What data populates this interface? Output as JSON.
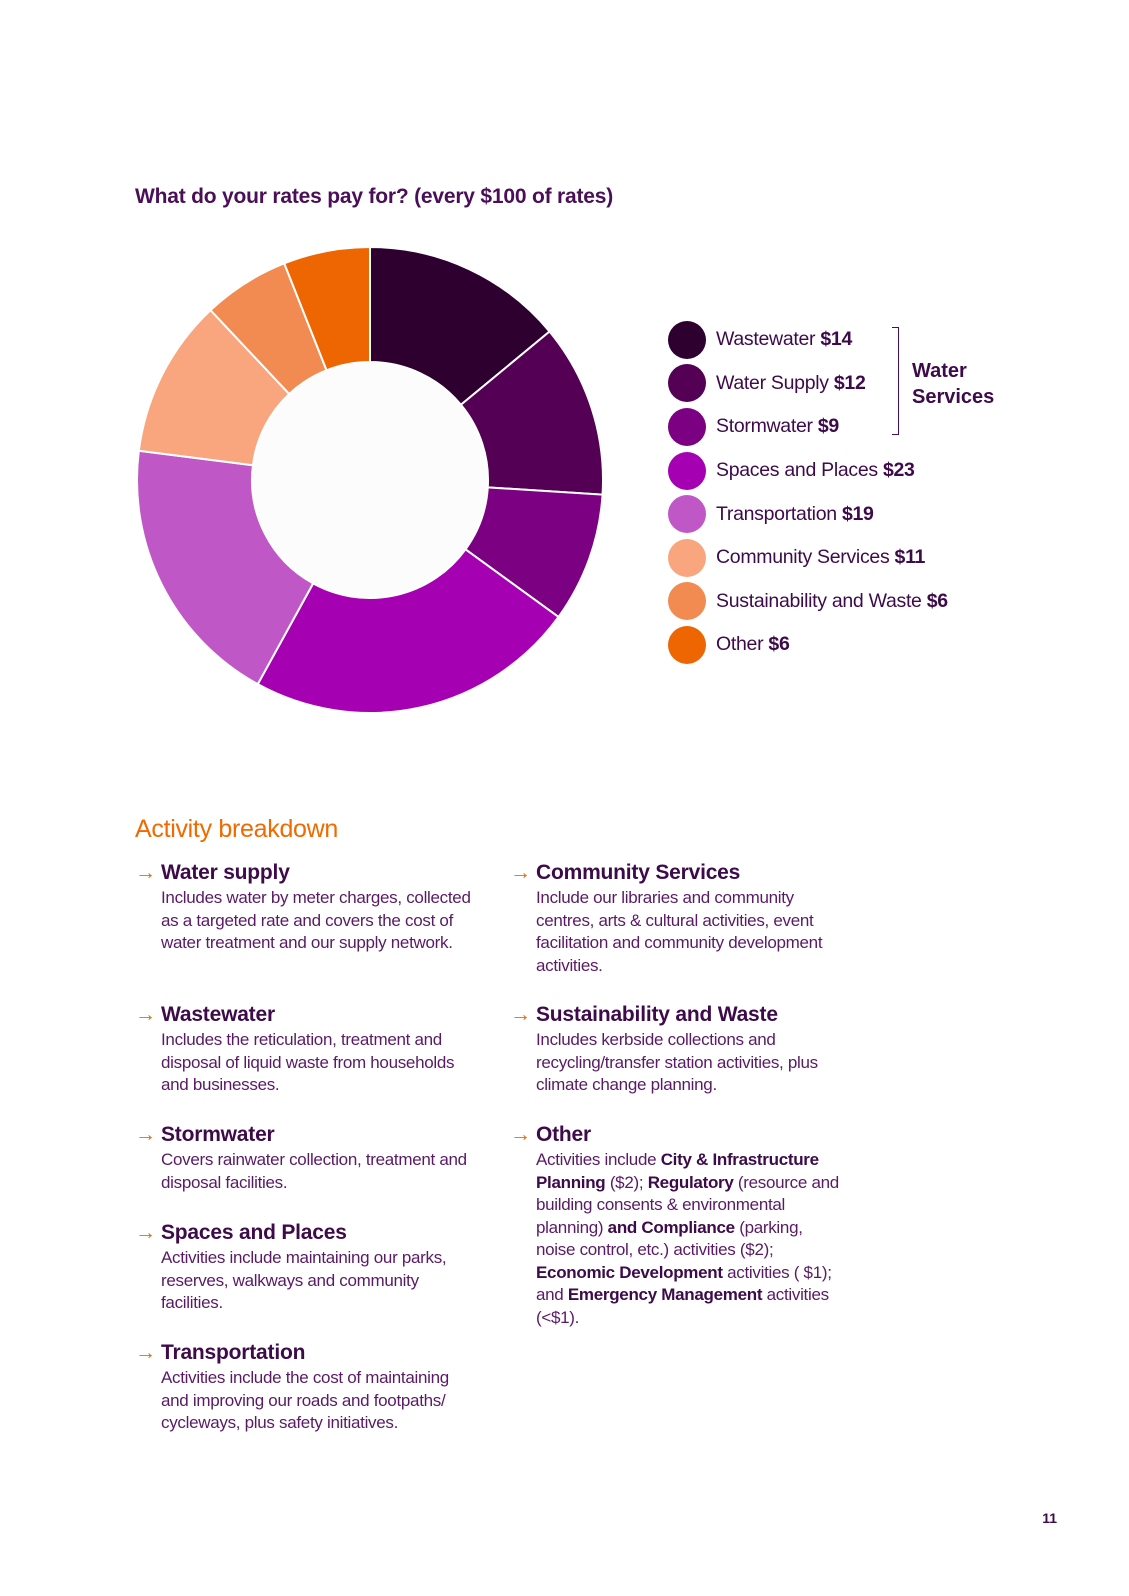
{
  "chart_data": {
    "type": "pie",
    "title": "What do your rates pay for? (every $100 of rates)",
    "series": [
      {
        "name": "Wastewater",
        "value": 14,
        "value_label": "$14",
        "color": "#2e0030"
      },
      {
        "name": "Water Supply",
        "value": 12,
        "value_label": "$12",
        "color": "#540055"
      },
      {
        "name": "Stormwater",
        "value": 9,
        "value_label": "$9",
        "color": "#7c0082"
      },
      {
        "name": "Spaces and Places",
        "value": 23,
        "value_label": "$23",
        "color": "#a600b3"
      },
      {
        "name": "Transportation",
        "value": 19,
        "value_label": "$19",
        "color": "#c057c6"
      },
      {
        "name": "Community Services",
        "value": 11,
        "value_label": "$11",
        "color": "#f9a67f"
      },
      {
        "name": "Sustainability and Waste",
        "value": 6,
        "value_label": "$6",
        "color": "#f28b51"
      },
      {
        "name": "Other",
        "value": 6,
        "value_label": "$6",
        "color": "#ee6602"
      }
    ],
    "group_label": "Water Services",
    "legend_position": "right"
  },
  "section_heading": "Activity breakdown",
  "activities": [
    {
      "title": "Water supply",
      "desc": "Includes water by meter charges, collected as a targeted rate and covers the cost of water treatment and our supply network."
    },
    {
      "title": "Wastewater",
      "desc": "Includes the reticulation, treatment and disposal of liquid waste from households and businesses."
    },
    {
      "title": "Stormwater",
      "desc": "Covers rainwater collection, treatment and disposal facilities."
    },
    {
      "title": "Spaces and Places",
      "desc": "Activities include maintaining our parks, reserves, walkways and community facilities."
    },
    {
      "title": "Transportation",
      "desc": "Activities include the cost of maintaining and improving our roads and footpaths/ cycleways, plus safety initiatives."
    },
    {
      "title": "Community Services",
      "desc": "Include our libraries and community centres, arts & cultural activities, event facilitation and community development activities."
    },
    {
      "title": "Sustainability and Waste",
      "desc": "Includes kerbside collections and recycling/transfer station activities, plus climate change planning."
    },
    {
      "title": "Other",
      "desc_parts": [
        {
          "t": "Activities include ",
          "b": false
        },
        {
          "t": "City & Infrastructure Planning",
          "b": true
        },
        {
          "t": " ($2); ",
          "b": false
        },
        {
          "t": "Regulatory",
          "b": true
        },
        {
          "t": " (resource and building consents & environmental planning) ",
          "b": false
        },
        {
          "t": "and Compliance",
          "b": true
        },
        {
          "t": " (parking, noise control, etc.) activities ($2); ",
          "b": false
        },
        {
          "t": "Economic Development",
          "b": true
        },
        {
          "t": " activities ( $1); and ",
          "b": false
        },
        {
          "t": "Emergency Management",
          "b": true
        },
        {
          "t": " activities (<$1).",
          "b": false
        }
      ]
    }
  ],
  "page_number": "11",
  "icons": {
    "arrow": "arrow-right-icon",
    "arrow_color": "#f06a00"
  }
}
